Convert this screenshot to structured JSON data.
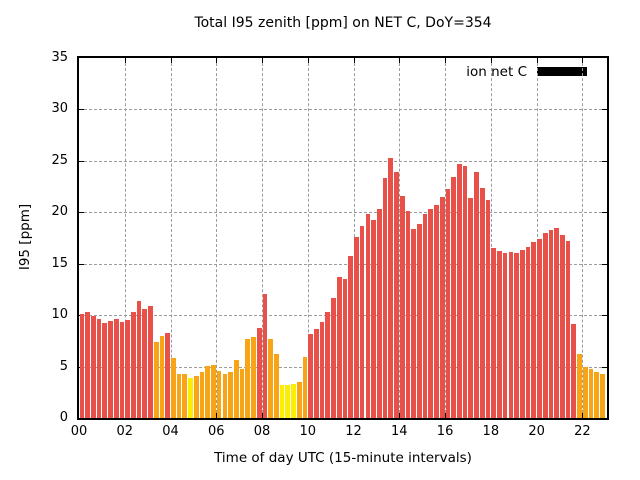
{
  "title": "Total I95 zenith [ppm] on NET C, DoY=354",
  "axes": {
    "ylabel": "I95 [ppm]",
    "xlabel": "Time of day UTC (15-minute intervals)",
    "y_ticks": [
      0,
      5,
      10,
      15,
      20,
      25,
      30,
      35
    ],
    "x_ticks": [
      "00",
      "02",
      "04",
      "06",
      "08",
      "10",
      "12",
      "14",
      "16",
      "18",
      "20",
      "22"
    ],
    "ylim": [
      0,
      35
    ]
  },
  "legend": {
    "label": "ion net C",
    "swatch_color": "#000000"
  },
  "colors": {
    "red": "#e8514a",
    "orange": "#f7a416",
    "yellow": "#fcee00",
    "grid": "#9c9c9c",
    "border": "#000000",
    "background": "#ffffff"
  },
  "chart_data": {
    "type": "bar",
    "title": "Total I95 zenith [ppm] on NET C, DoY=354",
    "xlabel": "Time of day UTC (15-minute intervals)",
    "ylabel": "I95 [ppm]",
    "ylim": [
      0,
      35
    ],
    "grid": true,
    "legend_position": "top-right",
    "series_name": "ion net C",
    "x_tick_labels": [
      "00",
      "02",
      "04",
      "06",
      "08",
      "10",
      "12",
      "14",
      "16",
      "18",
      "20",
      "22"
    ],
    "times": [
      "00:00",
      "00:15",
      "00:30",
      "00:45",
      "01:00",
      "01:15",
      "01:30",
      "01:45",
      "02:00",
      "02:15",
      "02:30",
      "02:45",
      "03:00",
      "03:15",
      "03:30",
      "03:45",
      "04:00",
      "04:15",
      "04:30",
      "04:45",
      "05:00",
      "05:15",
      "05:30",
      "05:45",
      "06:00",
      "06:15",
      "06:30",
      "06:45",
      "07:00",
      "07:15",
      "07:30",
      "07:45",
      "08:00",
      "08:15",
      "08:30",
      "08:45",
      "09:00",
      "09:15",
      "09:30",
      "09:45",
      "10:00",
      "10:15",
      "10:30",
      "10:45",
      "11:00",
      "11:15",
      "11:30",
      "11:45",
      "12:00",
      "12:15",
      "12:30",
      "12:45",
      "13:00",
      "13:15",
      "13:30",
      "13:45",
      "14:00",
      "14:15",
      "14:30",
      "14:45",
      "15:00",
      "15:15",
      "15:30",
      "15:45",
      "16:00",
      "16:15",
      "16:30",
      "16:45",
      "17:00",
      "17:15",
      "17:30",
      "17:45",
      "18:00",
      "18:15",
      "18:30",
      "18:45",
      "19:00",
      "19:15",
      "19:30",
      "19:45",
      "20:00",
      "20:15",
      "20:30",
      "20:45",
      "21:00",
      "21:15",
      "21:30",
      "21:45",
      "22:00",
      "22:15",
      "22:30",
      "22:45"
    ],
    "values": [
      10.1,
      10.3,
      9.9,
      9.6,
      9.2,
      9.4,
      9.6,
      9.3,
      9.5,
      10.3,
      11.4,
      10.6,
      10.9,
      7.4,
      8.0,
      8.3,
      5.8,
      4.3,
      4.3,
      3.9,
      4.1,
      4.5,
      5.1,
      5.2,
      4.6,
      4.3,
      4.5,
      5.6,
      4.8,
      7.7,
      7.9,
      8.8,
      12.1,
      7.7,
      6.2,
      3.2,
      3.2,
      3.3,
      3.5,
      5.9,
      8.2,
      8.7,
      9.3,
      10.3,
      11.7,
      13.7,
      13.5,
      15.8,
      17.6,
      18.7,
      19.8,
      19.3,
      20.3,
      23.3,
      25.3,
      23.9,
      21.6,
      20.1,
      18.4,
      18.9,
      19.8,
      20.3,
      20.7,
      21.5,
      22.3,
      23.4,
      24.7,
      24.5,
      21.4,
      23.9,
      22.4,
      21.2,
      16.5,
      16.2,
      16.0,
      16.1,
      16.0,
      16.3,
      16.6,
      17.1,
      17.4,
      18.0,
      18.3,
      18.5,
      17.8,
      17.2,
      9.1,
      6.2,
      5.0,
      4.8,
      4.5,
      4.3
    ],
    "bar_colors": [
      "red",
      "red",
      "red",
      "red",
      "red",
      "red",
      "red",
      "red",
      "red",
      "red",
      "red",
      "red",
      "red",
      "orange",
      "orange",
      "red",
      "orange",
      "orange",
      "orange",
      "yellow",
      "orange",
      "orange",
      "orange",
      "orange",
      "orange",
      "orange",
      "orange",
      "orange",
      "orange",
      "orange",
      "orange",
      "red",
      "red",
      "orange",
      "orange",
      "yellow",
      "yellow",
      "yellow",
      "orange",
      "orange",
      "red",
      "red",
      "red",
      "red",
      "red",
      "red",
      "red",
      "red",
      "red",
      "red",
      "red",
      "red",
      "red",
      "red",
      "red",
      "red",
      "red",
      "red",
      "red",
      "red",
      "red",
      "red",
      "red",
      "red",
      "red",
      "red",
      "red",
      "red",
      "red",
      "red",
      "red",
      "red",
      "red",
      "red",
      "red",
      "red",
      "red",
      "red",
      "red",
      "red",
      "red",
      "red",
      "red",
      "red",
      "red",
      "red",
      "red",
      "orange",
      "orange",
      "orange",
      "orange",
      "orange"
    ]
  }
}
